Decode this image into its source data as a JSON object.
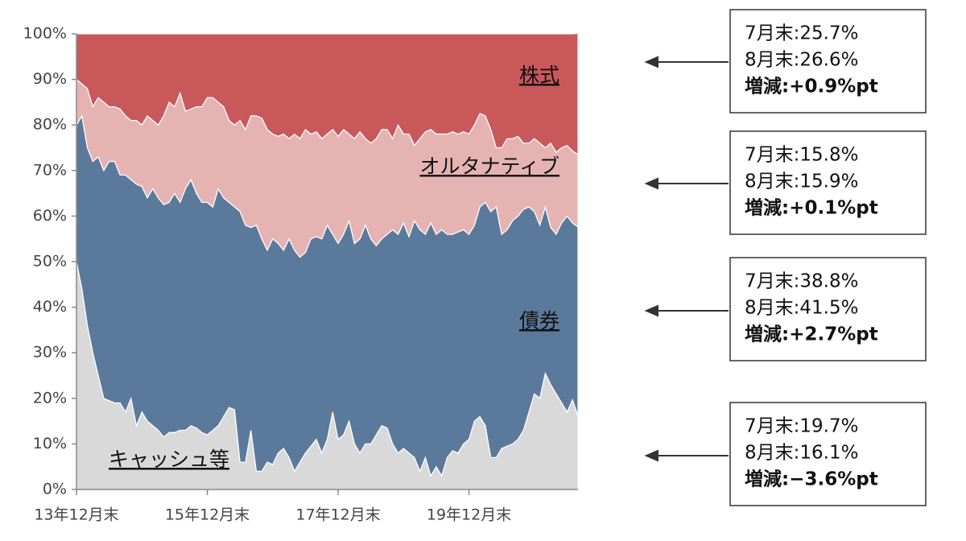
{
  "chart_data": {
    "type": "stacked-area",
    "categories": [
      "13年12月末",
      null,
      null,
      null,
      null,
      null,
      null,
      null,
      null,
      null,
      null,
      null,
      null,
      null,
      null,
      null,
      null,
      null,
      null,
      null,
      null,
      null,
      null,
      null,
      "15年12月末",
      null,
      null,
      null,
      null,
      null,
      null,
      null,
      null,
      null,
      null,
      null,
      null,
      null,
      null,
      null,
      null,
      null,
      null,
      null,
      null,
      null,
      null,
      null,
      "17年12月末",
      null,
      null,
      null,
      null,
      null,
      null,
      null,
      null,
      null,
      null,
      null,
      null,
      null,
      null,
      null,
      null,
      null,
      null,
      null,
      null,
      null,
      null,
      null,
      "19年12月末",
      null,
      null,
      null,
      null,
      null,
      null,
      null,
      null,
      null,
      null,
      null,
      null,
      null,
      null,
      null,
      null,
      null,
      null,
      null,
      null
    ],
    "series": [
      {
        "name": "キャッシュ等",
        "color": "#d9d9d9",
        "values": [
          50,
          44,
          36,
          30,
          25,
          20,
          19.5,
          19,
          19,
          17,
          20,
          14,
          17,
          15,
          14,
          13,
          11.5,
          12.5,
          12.5,
          13,
          13,
          14,
          13.5,
          12.5,
          12,
          13,
          14,
          16,
          18,
          17.5,
          6,
          6,
          13,
          4,
          4,
          6,
          5.5,
          8,
          9,
          7,
          4,
          6,
          8,
          9.5,
          11,
          8,
          11,
          17,
          11,
          12,
          15,
          10,
          8,
          10,
          10,
          12,
          14,
          13.5,
          10,
          8,
          9,
          8,
          7,
          4,
          7,
          3,
          5,
          3,
          7,
          8.5,
          8,
          10,
          11,
          15,
          16,
          14,
          7,
          7,
          9,
          9.5,
          10,
          11,
          13,
          17,
          21,
          20,
          25.5,
          23,
          21,
          19,
          17,
          19.7,
          16.1
        ]
      },
      {
        "name": "債券",
        "color": "#5b7a9b",
        "values": [
          30,
          38,
          39,
          42,
          48,
          50,
          52.5,
          53,
          50,
          52,
          48,
          53,
          49.5,
          49,
          52,
          51,
          51,
          50.5,
          52.5,
          50,
          53,
          54,
          51.5,
          50.5,
          51,
          49,
          52,
          48,
          45,
          44.5,
          55,
          52,
          44.5,
          54,
          51,
          46.5,
          49.5,
          46,
          43.5,
          48,
          48.5,
          45,
          44,
          45.5,
          44.5,
          47,
          47,
          39,
          43,
          44,
          44,
          44,
          47,
          48,
          45,
          41.5,
          41,
          42.5,
          47,
          48,
          49.5,
          47.5,
          52,
          53,
          49,
          55.5,
          51,
          54,
          49,
          47.5,
          48.5,
          47,
          45,
          43,
          46,
          49,
          54,
          55,
          47,
          47.5,
          49,
          49,
          48.5,
          45,
          40,
          38,
          36.5,
          34.5,
          35,
          39.5,
          43,
          38.8,
          41.5
        ]
      },
      {
        "name": "オルタナティブ",
        "color": "#e6b3b3",
        "values": [
          10,
          7,
          13,
          12,
          13,
          15,
          12,
          12,
          14.5,
          13,
          13,
          14,
          13.5,
          18,
          15,
          16,
          19.5,
          22,
          19,
          24,
          17,
          15.5,
          19,
          21,
          23,
          24,
          19,
          20,
          18,
          18,
          20,
          21,
          24.5,
          24,
          26.5,
          26.5,
          23,
          23.5,
          25.5,
          22,
          25.5,
          26,
          27,
          23,
          23,
          22,
          20,
          23,
          23.5,
          23,
          19,
          23,
          23.5,
          19,
          21,
          23.5,
          24,
          23,
          20,
          24,
          19.5,
          22.5,
          16.5,
          20,
          22.5,
          20.5,
          22,
          21,
          22,
          22.5,
          21.5,
          21.5,
          22,
          22,
          20.5,
          19,
          18,
          13,
          19,
          20,
          18,
          17.5,
          14.5,
          14,
          16,
          18,
          13,
          18.5,
          18,
          16.5,
          15.5,
          15.8,
          15.9
        ]
      },
      {
        "name": "株式",
        "color": "#c9585b",
        "values": [
          10,
          11,
          12,
          16,
          14,
          15,
          16,
          16,
          16.5,
          18,
          19,
          19,
          20,
          18,
          19,
          20,
          18,
          15,
          16,
          13,
          17,
          16.5,
          16,
          16,
          14,
          14,
          15,
          16,
          19,
          20,
          19,
          21,
          18,
          18,
          18.5,
          21,
          22,
          22.5,
          22,
          23,
          22,
          23,
          21,
          22,
          21.5,
          23,
          22,
          21,
          22.5,
          21,
          22,
          23,
          21.5,
          23,
          24,
          23,
          21,
          21,
          23,
          20,
          22,
          22,
          24.5,
          23,
          21.5,
          21,
          22,
          22,
          22,
          21.5,
          22,
          21.5,
          22,
          20,
          17.5,
          18,
          21,
          25,
          25,
          23,
          23,
          22.5,
          24,
          24,
          23,
          24,
          25,
          24,
          26,
          25,
          24.5,
          25.7,
          26.6
        ]
      }
    ],
    "ylim": [
      0,
      100
    ],
    "yticks": [
      {
        "value": 0,
        "label": "0%"
      },
      {
        "value": 10,
        "label": "10%"
      },
      {
        "value": 20,
        "label": "20%"
      },
      {
        "value": 30,
        "label": "30%"
      },
      {
        "value": 40,
        "label": "40%"
      },
      {
        "value": 50,
        "label": "50%"
      },
      {
        "value": 60,
        "label": "60%"
      },
      {
        "value": 70,
        "label": "70%"
      },
      {
        "value": 80,
        "label": "80%"
      },
      {
        "value": 90,
        "label": "90%"
      },
      {
        "value": 100,
        "label": "100%"
      }
    ],
    "annotations": [
      {
        "lines": [
          "7月末:25.7%",
          "8月末:26.6%",
          "増減:+0.9%pt"
        ]
      },
      {
        "lines": [
          "7月末:15.8%",
          "8月末:15.9%",
          "増減:+0.1%pt"
        ]
      },
      {
        "lines": [
          "7月末:38.8%",
          "8月末:41.5%",
          "増減:+2.7%pt"
        ]
      },
      {
        "lines": [
          "7月末:19.7%",
          "8月末:16.1%",
          "増減:−3.6%pt"
        ]
      }
    ]
  }
}
